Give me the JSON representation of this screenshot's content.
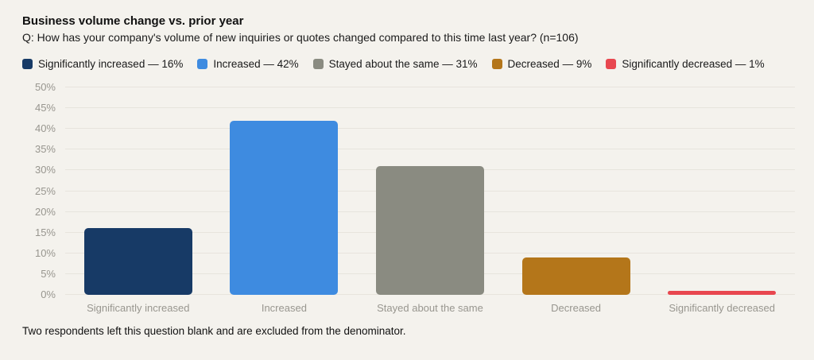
{
  "header": {
    "title": "Business volume change vs. prior year",
    "subtitle": "Q: How has your company's volume of new inquiries or quotes changed compared to this time last year? (n=106)"
  },
  "legend": [
    {
      "label": "Significantly increased — 16%",
      "color": "#173A66"
    },
    {
      "label": "Increased — 42%",
      "color": "#3E8BE0"
    },
    {
      "label": "Stayed about the same — 31%",
      "color": "#8A8B81"
    },
    {
      "label": "Decreased — 9%",
      "color": "#B4761A"
    },
    {
      "label": "Significantly decreased — 1%",
      "color": "#E8474F"
    }
  ],
  "chart_data": {
    "type": "bar",
    "title": "Business volume change vs. prior year",
    "categories": [
      "Significantly increased",
      "Increased",
      "Stayed about the same",
      "Decreased",
      "Significantly decreased"
    ],
    "values": [
      16,
      42,
      31,
      9,
      1
    ],
    "colors": [
      "#173A66",
      "#3E8BE0",
      "#8A8B81",
      "#B4761A",
      "#E8474F"
    ],
    "xlabel": "",
    "ylabel": "",
    "ylim": [
      0,
      50
    ],
    "ytick_step": 5,
    "ytick_suffix": "%",
    "grid": true,
    "legend_position": "top"
  },
  "footer": {
    "note": "Two respondents left this question blank and are excluded from the denominator."
  },
  "colors": {
    "background": "#F4F2ED",
    "gridline": "#E7E4DD",
    "axis_label": "#98968F",
    "text": "#1A1A1A"
  }
}
